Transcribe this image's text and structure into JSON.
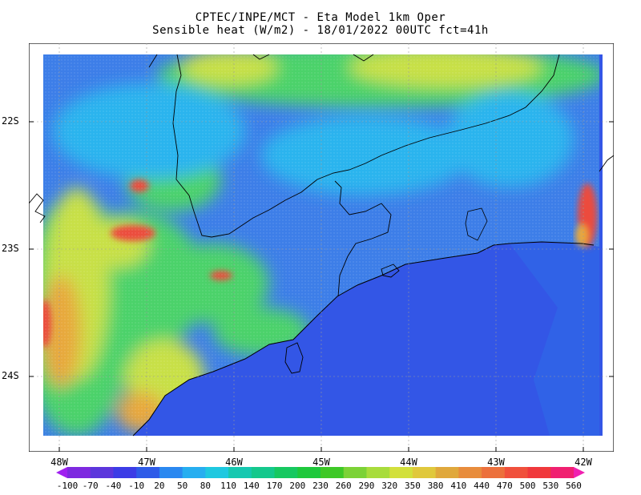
{
  "header": {
    "line1": "CPTEC/INPE/MCT -  Eta Model 1km Oper",
    "line2": "Sensible heat (W/m2) - 18/01/2022 00UTC fct=41h"
  },
  "axes": {
    "lat_labels": [
      "22S",
      "23S",
      "24S"
    ],
    "lon_labels": [
      "48W",
      "47W",
      "46W",
      "45W",
      "44W",
      "43W",
      "42W"
    ]
  },
  "colorbar": {
    "labels": [
      "-100",
      "-70",
      "-40",
      "-10",
      "20",
      "50",
      "80",
      "110",
      "140",
      "170",
      "200",
      "230",
      "260",
      "290",
      "320",
      "350",
      "380",
      "410",
      "440",
      "470",
      "500",
      "530",
      "560"
    ],
    "colors": [
      "#a020f0",
      "#7e29e0",
      "#5c36dc",
      "#3c3ce6",
      "#2e5be8",
      "#2a88f0",
      "#26aef0",
      "#1ec8e0",
      "#16c8b0",
      "#14c88c",
      "#16c860",
      "#1ec83c",
      "#3ec826",
      "#7cd236",
      "#a8dc3c",
      "#d2e03c",
      "#e0c83c",
      "#e0a83c",
      "#e88c3c",
      "#ec703c",
      "#f0503c",
      "#f0383c",
      "#f02070",
      "#f020b0"
    ]
  },
  "map": {
    "colors": {
      "ocean": "#3356e6",
      "ocean_light": "#2d6ee8",
      "land_blue": "#3d7ee8",
      "land_cyan": "#2ab4ee",
      "land_green": "#4cd26a",
      "land_yellow": "#c8e046",
      "land_orange": "#e8a83c",
      "land_red": "#ec4c3c",
      "border": "#000000"
    }
  }
}
